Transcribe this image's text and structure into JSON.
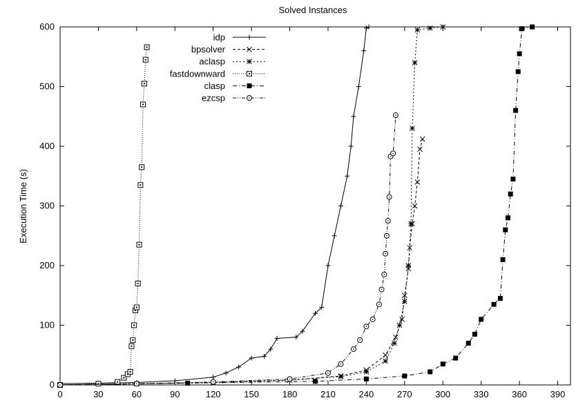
{
  "chart_data": {
    "type": "line",
    "title": "Solved Instances",
    "xlabel": "",
    "ylabel": "Execution Time (s)",
    "xlim": [
      0,
      400
    ],
    "ylim": [
      0,
      600
    ],
    "xticks": [
      0,
      30,
      60,
      90,
      120,
      150,
      180,
      210,
      240,
      270,
      300,
      330,
      360,
      390
    ],
    "yticks": [
      0,
      100,
      200,
      300,
      400,
      500,
      600
    ],
    "xtick_labels": [
      "0",
      "30",
      "60",
      "90",
      "120",
      "150",
      "180",
      "210",
      "240",
      "270",
      "300",
      "330",
      "360",
      "390"
    ],
    "ytick_labels": [
      "0",
      "100",
      "200",
      "300",
      "400",
      "500",
      "600"
    ],
    "grid": false,
    "legend": "top-left",
    "series": [
      {
        "name": "idp",
        "marker": "plus",
        "dash": "solid",
        "points": [
          [
            0,
            2
          ],
          [
            30,
            3
          ],
          [
            60,
            4
          ],
          [
            90,
            7
          ],
          [
            120,
            13
          ],
          [
            130,
            20
          ],
          [
            140,
            30
          ],
          [
            150,
            45
          ],
          [
            160,
            48
          ],
          [
            165,
            60
          ],
          [
            170,
            78
          ],
          [
            185,
            80
          ],
          [
            190,
            90
          ],
          [
            200,
            120
          ],
          [
            205,
            130
          ],
          [
            210,
            200
          ],
          [
            215,
            250
          ],
          [
            220,
            300
          ],
          [
            225,
            350
          ],
          [
            228,
            400
          ],
          [
            230,
            450
          ],
          [
            234,
            500
          ],
          [
            238,
            560
          ],
          [
            240,
            598
          ],
          [
            242,
            600
          ]
        ]
      },
      {
        "name": "bpsolver",
        "marker": "x",
        "dash": "dashed",
        "points": [
          [
            0,
            0
          ],
          [
            60,
            2
          ],
          [
            120,
            4
          ],
          [
            180,
            8
          ],
          [
            220,
            15
          ],
          [
            240,
            25
          ],
          [
            255,
            50
          ],
          [
            263,
            80
          ],
          [
            268,
            110
          ],
          [
            270,
            150
          ],
          [
            273,
            195
          ],
          [
            274,
            230
          ],
          [
            276,
            270
          ],
          [
            278,
            300
          ],
          [
            280,
            340
          ],
          [
            282,
            395
          ],
          [
            284,
            412
          ]
        ]
      },
      {
        "name": "aclasp",
        "marker": "star",
        "dash": "dotted",
        "points": [
          [
            0,
            0
          ],
          [
            60,
            2
          ],
          [
            120,
            4
          ],
          [
            180,
            8
          ],
          [
            220,
            14
          ],
          [
            240,
            22
          ],
          [
            255,
            40
          ],
          [
            262,
            70
          ],
          [
            266,
            100
          ],
          [
            270,
            140
          ],
          [
            273,
            200
          ],
          [
            275,
            270
          ],
          [
            276,
            430
          ],
          [
            278,
            540
          ],
          [
            280,
            595
          ],
          [
            290,
            598
          ],
          [
            300,
            600
          ]
        ]
      },
      {
        "name": "fastdownward",
        "marker": "box",
        "dash": "fine-dotted",
        "points": [
          [
            0,
            0
          ],
          [
            30,
            2
          ],
          [
            45,
            5
          ],
          [
            50,
            12
          ],
          [
            53,
            18
          ],
          [
            55,
            22
          ],
          [
            56,
            65
          ],
          [
            57,
            75
          ],
          [
            58,
            100
          ],
          [
            59,
            125
          ],
          [
            60,
            130
          ],
          [
            61,
            170
          ],
          [
            62,
            235
          ],
          [
            63,
            335
          ],
          [
            64,
            365
          ],
          [
            65,
            470
          ],
          [
            66,
            505
          ],
          [
            67,
            545
          ],
          [
            68,
            566
          ]
        ]
      },
      {
        "name": "clasp",
        "marker": "filled-box",
        "dash": "dash-dot",
        "points": [
          [
            0,
            0
          ],
          [
            100,
            3
          ],
          [
            200,
            6
          ],
          [
            240,
            10
          ],
          [
            270,
            15
          ],
          [
            290,
            22
          ],
          [
            300,
            35
          ],
          [
            310,
            45
          ],
          [
            320,
            70
          ],
          [
            325,
            85
          ],
          [
            330,
            110
          ],
          [
            340,
            135
          ],
          [
            345,
            145
          ],
          [
            347,
            210
          ],
          [
            349,
            260
          ],
          [
            351,
            280
          ],
          [
            353,
            320
          ],
          [
            355,
            345
          ],
          [
            357,
            460
          ],
          [
            359,
            525
          ],
          [
            360,
            555
          ],
          [
            362,
            597
          ],
          [
            370,
            600
          ]
        ]
      },
      {
        "name": "ezcsp",
        "marker": "circle",
        "dash": "dash-dot-dot",
        "points": [
          [
            0,
            0
          ],
          [
            60,
            2
          ],
          [
            120,
            5
          ],
          [
            180,
            10
          ],
          [
            210,
            20
          ],
          [
            220,
            35
          ],
          [
            230,
            60
          ],
          [
            235,
            75
          ],
          [
            240,
            98
          ],
          [
            245,
            110
          ],
          [
            250,
            135
          ],
          [
            252,
            160
          ],
          [
            254,
            185
          ],
          [
            255,
            220
          ],
          [
            256,
            250
          ],
          [
            257,
            275
          ],
          [
            258,
            315
          ],
          [
            259,
            383
          ],
          [
            261,
            388
          ],
          [
            263,
            452
          ]
        ]
      }
    ]
  }
}
